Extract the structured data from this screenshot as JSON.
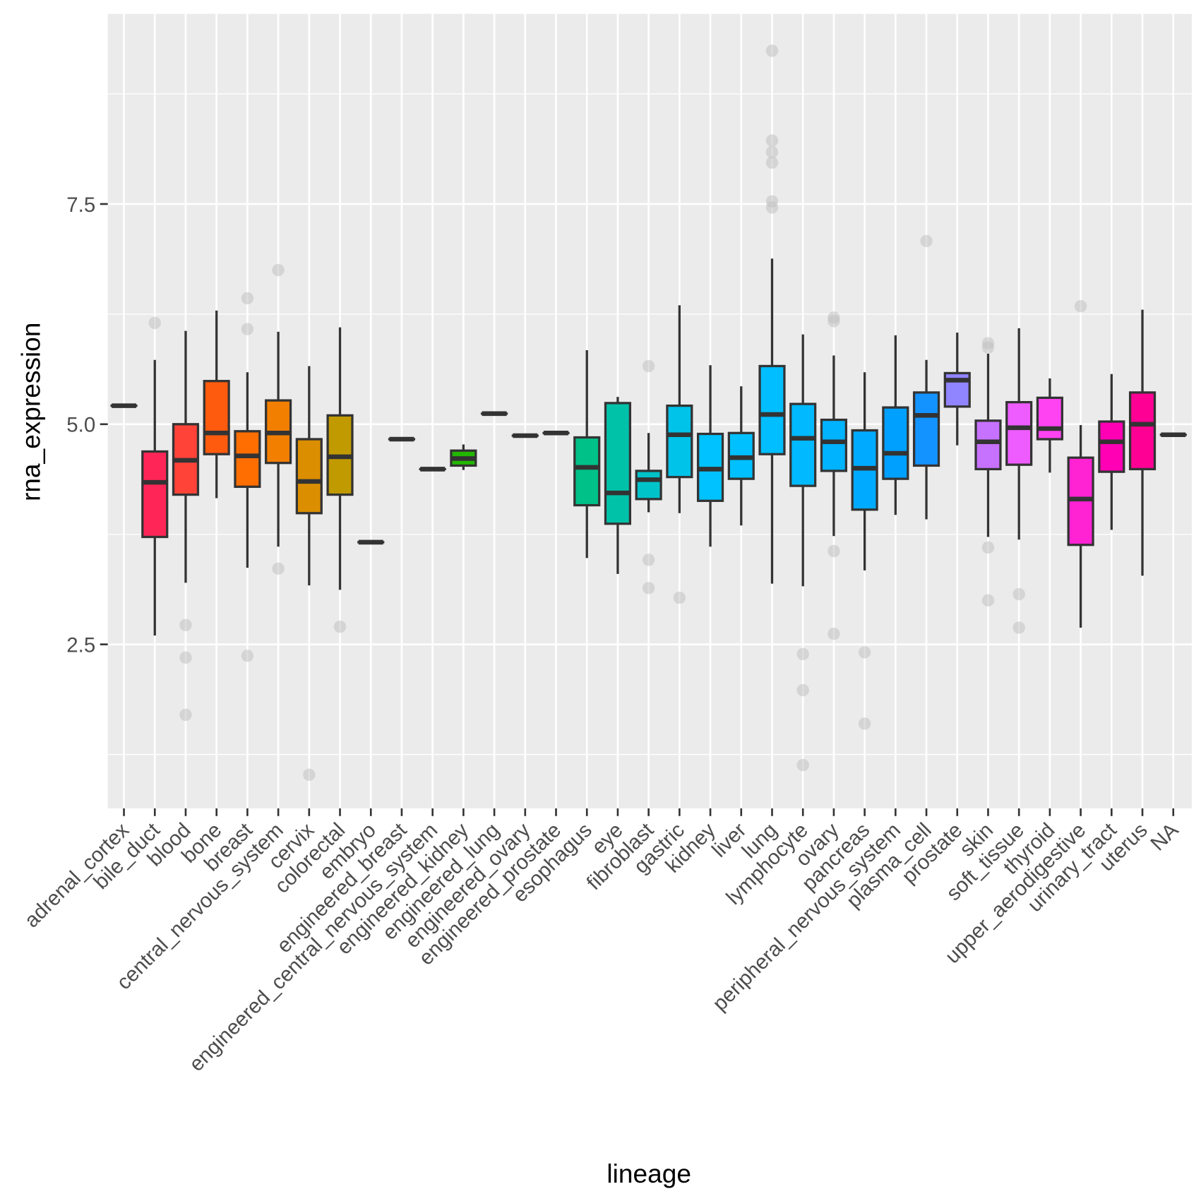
{
  "chart_data": {
    "type": "boxplot",
    "xlabel": "lineage",
    "ylabel": "rna_expression",
    "ylim": [
      0.64,
      9.66
    ],
    "yticks": [
      "2.5",
      "5.0",
      "7.5"
    ],
    "ytick_values": [
      2.5,
      5.0,
      7.5
    ],
    "grid": true,
    "fill_palette": "ggplot2 default hue per category; NA grey",
    "categories": [
      {
        "name": "adrenal_cortex",
        "stats": [
          5.21,
          5.21,
          5.21,
          5.21,
          5.21
        ],
        "outliers": []
      },
      {
        "name": "bile_duct",
        "stats": [
          2.6,
          3.72,
          4.34,
          4.69,
          5.73
        ],
        "outliers": [
          6.15
        ]
      },
      {
        "name": "blood",
        "stats": [
          3.2,
          4.2,
          4.59,
          5.0,
          6.06
        ],
        "outliers": [
          2.72,
          2.35,
          1.7
        ]
      },
      {
        "name": "bone",
        "stats": [
          4.16,
          4.66,
          4.9,
          5.49,
          6.29
        ],
        "outliers": []
      },
      {
        "name": "breast",
        "stats": [
          3.37,
          4.29,
          4.64,
          4.92,
          5.59
        ],
        "outliers": [
          6.43,
          6.08,
          2.37
        ]
      },
      {
        "name": "central_nervous_system",
        "stats": [
          3.61,
          4.56,
          4.9,
          5.27,
          6.05
        ],
        "outliers": [
          6.75,
          3.36
        ]
      },
      {
        "name": "cervix",
        "stats": [
          3.17,
          3.99,
          4.35,
          4.83,
          5.66
        ],
        "outliers": [
          1.02
        ]
      },
      {
        "name": "colorectal",
        "stats": [
          3.12,
          4.2,
          4.63,
          5.1,
          6.1
        ],
        "outliers": [
          2.7
        ]
      },
      {
        "name": "embryo",
        "stats": [
          3.66,
          3.66,
          3.66,
          3.66,
          3.66
        ],
        "outliers": []
      },
      {
        "name": "engineered_breast",
        "stats": [
          4.83,
          4.83,
          4.83,
          4.83,
          4.83
        ],
        "outliers": []
      },
      {
        "name": "engineered_central_nervous_system",
        "stats": [
          4.49,
          4.49,
          4.49,
          4.49,
          4.49
        ],
        "outliers": []
      },
      {
        "name": "engineered_kidney",
        "stats": [
          4.48,
          4.53,
          4.61,
          4.7,
          4.77
        ],
        "outliers": []
      },
      {
        "name": "engineered_lung",
        "stats": [
          5.12,
          5.12,
          5.12,
          5.12,
          5.12
        ],
        "outliers": []
      },
      {
        "name": "engineered_ovary",
        "stats": [
          4.87,
          4.87,
          4.87,
          4.87,
          4.87
        ],
        "outliers": []
      },
      {
        "name": "engineered_prostate",
        "stats": [
          4.9,
          4.9,
          4.9,
          4.9,
          4.9
        ],
        "outliers": []
      },
      {
        "name": "esophagus",
        "stats": [
          3.48,
          4.08,
          4.51,
          4.85,
          5.84
        ],
        "outliers": []
      },
      {
        "name": "eye",
        "stats": [
          3.3,
          3.87,
          4.22,
          5.24,
          5.31
        ],
        "outliers": []
      },
      {
        "name": "fibroblast",
        "stats": [
          4.0,
          4.15,
          4.37,
          4.47,
          4.9
        ],
        "outliers": [
          5.66,
          3.46,
          3.14
        ]
      },
      {
        "name": "gastric",
        "stats": [
          3.99,
          4.4,
          4.88,
          5.21,
          6.35
        ],
        "outliers": [
          3.03
        ]
      },
      {
        "name": "kidney",
        "stats": [
          3.61,
          4.13,
          4.49,
          4.89,
          5.67
        ],
        "outliers": []
      },
      {
        "name": "liver",
        "stats": [
          3.85,
          4.38,
          4.62,
          4.9,
          5.43
        ],
        "outliers": []
      },
      {
        "name": "lung",
        "stats": [
          3.19,
          4.66,
          5.11,
          5.66,
          6.88
        ],
        "outliers": [
          9.24,
          8.22,
          8.09,
          7.97,
          7.53,
          7.46
        ]
      },
      {
        "name": "lymphocyte",
        "stats": [
          3.16,
          4.3,
          4.84,
          5.23,
          6.02
        ],
        "outliers": [
          2.39,
          1.98,
          1.13
        ]
      },
      {
        "name": "ovary",
        "stats": [
          3.73,
          4.47,
          4.8,
          5.05,
          5.78
        ],
        "outliers": [
          6.21,
          6.17,
          3.56,
          2.62
        ]
      },
      {
        "name": "pancreas",
        "stats": [
          3.34,
          4.03,
          4.5,
          4.93,
          5.59
        ],
        "outliers": [
          2.41,
          1.6
        ]
      },
      {
        "name": "peripheral_nervous_system",
        "stats": [
          3.97,
          4.38,
          4.67,
          5.19,
          6.01
        ],
        "outliers": []
      },
      {
        "name": "plasma_cell",
        "stats": [
          3.92,
          4.53,
          5.1,
          5.36,
          5.73
        ],
        "outliers": [
          7.08
        ]
      },
      {
        "name": "prostate",
        "stats": [
          4.76,
          5.2,
          5.5,
          5.58,
          6.04
        ],
        "outliers": []
      },
      {
        "name": "skin",
        "stats": [
          3.72,
          4.49,
          4.8,
          5.04,
          5.8
        ],
        "outliers": [
          5.92,
          5.87,
          3.6,
          3.0
        ]
      },
      {
        "name": "soft_tissue",
        "stats": [
          3.69,
          4.54,
          4.96,
          5.25,
          6.09
        ],
        "outliers": [
          3.07,
          2.69
        ]
      },
      {
        "name": "thyroid",
        "stats": [
          4.45,
          4.83,
          4.95,
          5.3,
          5.52
        ],
        "outliers": []
      },
      {
        "name": "upper_aerodigestive",
        "stats": [
          2.69,
          3.63,
          4.15,
          4.62,
          4.99
        ],
        "outliers": [
          6.34
        ]
      },
      {
        "name": "urinary_tract",
        "stats": [
          3.8,
          4.46,
          4.8,
          5.03,
          5.57
        ],
        "outliers": []
      },
      {
        "name": "uterus",
        "stats": [
          3.28,
          4.49,
          5.0,
          5.36,
          6.3
        ],
        "outliers": []
      },
      {
        "name": "NA",
        "stats": [
          4.88,
          4.88,
          4.88,
          4.88,
          4.88
        ],
        "outliers": []
      }
    ],
    "colors": {
      "panel": "#EBEBEB",
      "grid": "#FFFFFF",
      "box_line": "#333333",
      "outlier": "#BEBEBE",
      "na_fill": "#7F7F7F"
    }
  }
}
